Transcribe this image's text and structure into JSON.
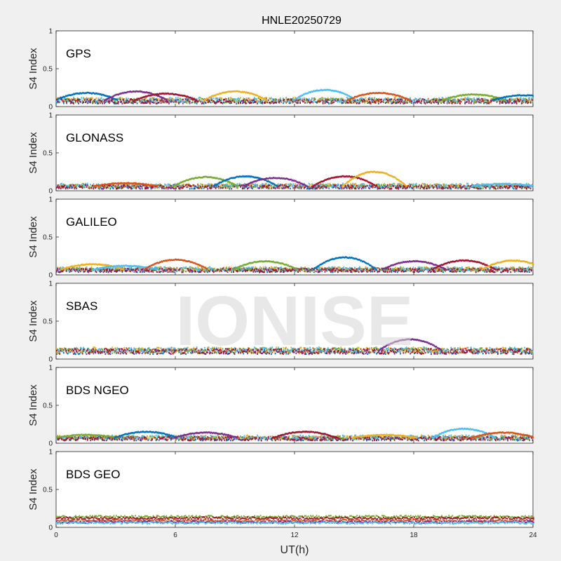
{
  "figure": {
    "title": "HNLE20250729",
    "watermark": "IONISE",
    "xlabel": "UT(h)"
  },
  "chart_data": [
    {
      "type": "scatter",
      "title": "GPS",
      "ylabel": "S4 Index",
      "xlim": [
        0,
        24
      ],
      "ylim": [
        0,
        1
      ],
      "xticks": [
        "0",
        "6",
        "12",
        "18",
        "24"
      ],
      "yticks": [
        "0",
        "0.5",
        "1"
      ],
      "base_level": 0.08,
      "noise": 0.03,
      "hump_height": 0.12,
      "humps": [
        [
          1.5,
          0.18
        ],
        [
          4.0,
          0.2
        ],
        [
          5.5,
          0.17
        ],
        [
          9.0,
          0.2
        ],
        [
          13.5,
          0.22
        ],
        [
          16.2,
          0.18
        ],
        [
          21.0,
          0.16
        ],
        [
          23.5,
          0.15
        ]
      ]
    },
    {
      "type": "scatter",
      "title": "GLONASS",
      "ylabel": "S4 Index",
      "xlim": [
        0,
        24
      ],
      "ylim": [
        0,
        1
      ],
      "xticks": [
        "0",
        "6",
        "12",
        "18",
        "24"
      ],
      "yticks": [
        "0",
        "0.5",
        "1"
      ],
      "base_level": 0.06,
      "noise": 0.025,
      "hump_height": 0.12,
      "humps": [
        [
          3.5,
          0.1
        ],
        [
          7.5,
          0.18
        ],
        [
          9.5,
          0.19
        ],
        [
          11.0,
          0.17
        ],
        [
          14.5,
          0.19
        ],
        [
          16.0,
          0.25
        ],
        [
          22.5,
          0.09
        ]
      ]
    },
    {
      "type": "scatter",
      "title": "GALILEO",
      "ylabel": "S4 Index",
      "xlim": [
        0,
        24
      ],
      "ylim": [
        0,
        1
      ],
      "xticks": [
        "0",
        "6",
        "12",
        "18",
        "24"
      ],
      "yticks": [
        "0",
        "0.5",
        "1"
      ],
      "base_level": 0.07,
      "noise": 0.025,
      "hump_height": 0.12,
      "humps": [
        [
          1.8,
          0.14
        ],
        [
          3.5,
          0.12
        ],
        [
          6.0,
          0.2
        ],
        [
          10.5,
          0.18
        ],
        [
          14.5,
          0.23
        ],
        [
          18.0,
          0.18
        ],
        [
          20.5,
          0.19
        ],
        [
          23.0,
          0.19
        ]
      ]
    },
    {
      "type": "scatter",
      "title": "SBAS",
      "ylabel": "S4 Index",
      "xlim": [
        0,
        24
      ],
      "ylim": [
        0,
        1
      ],
      "xticks": [
        "0",
        "6",
        "12",
        "18",
        "24"
      ],
      "yticks": [
        "0",
        "0.5",
        "1"
      ],
      "base_level": 0.11,
      "noise": 0.035,
      "hump_height": 0.1,
      "humps": [
        [
          17.8,
          0.26
        ]
      ]
    },
    {
      "type": "scatter",
      "title": "BDS NGEO",
      "ylabel": "S4 Index",
      "xlim": [
        0,
        24
      ],
      "ylim": [
        0,
        1
      ],
      "xticks": [
        "0",
        "6",
        "12",
        "18",
        "24"
      ],
      "yticks": [
        "0",
        "0.5",
        "1"
      ],
      "base_level": 0.07,
      "noise": 0.025,
      "hump_height": 0.08,
      "humps": [
        [
          1.5,
          0.11
        ],
        [
          4.5,
          0.15
        ],
        [
          7.5,
          0.14
        ],
        [
          12.5,
          0.15
        ],
        [
          16.5,
          0.11
        ],
        [
          20.5,
          0.19
        ],
        [
          22.5,
          0.14
        ]
      ]
    },
    {
      "type": "scatter",
      "title": "BDS GEO",
      "ylabel": "S4 Index",
      "xlim": [
        0,
        24
      ],
      "ylim": [
        0,
        1
      ],
      "xticks": [
        "0",
        "6",
        "12",
        "18",
        "24"
      ],
      "yticks": [
        "0",
        "0.5",
        "1"
      ],
      "base_level": 0.1,
      "noise": 0.015,
      "hump_height": 0.0,
      "levels": [
        0.14,
        0.12,
        0.09,
        0.07,
        0.06
      ],
      "humps": []
    }
  ],
  "series_colors": [
    "#0072BD",
    "#D95319",
    "#EDB120",
    "#7E2F8E",
    "#77AC30",
    "#4DBEEE",
    "#A2142F"
  ]
}
